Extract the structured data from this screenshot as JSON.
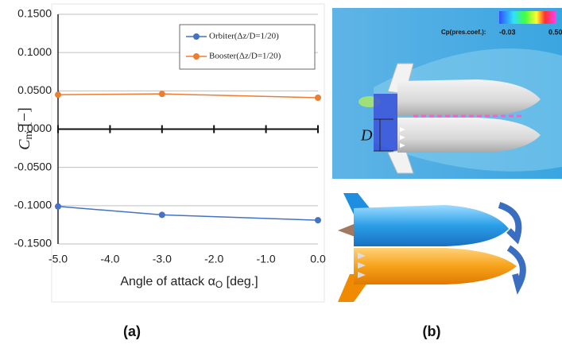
{
  "chart_data": {
    "type": "line",
    "x": [
      -5,
      -3,
      0
    ],
    "series": [
      {
        "name": "Orbiter(Δz/D=1/20)",
        "color": "#4472c4",
        "values": [
          -0.101,
          -0.112,
          -0.119
        ]
      },
      {
        "name": "Booster(Δz/D=1/20)",
        "color": "#ed7d31",
        "values": [
          0.045,
          0.046,
          0.041
        ]
      }
    ],
    "xlim": [
      -5,
      0
    ],
    "xticks": [
      {
        "value": -5,
        "label": "-5.0"
      },
      {
        "value": -4,
        "label": "-4.0"
      },
      {
        "value": -3,
        "label": "-3.0"
      },
      {
        "value": -2,
        "label": "-2.0"
      },
      {
        "value": -1,
        "label": "-1.0"
      },
      {
        "value": 0,
        "label": "0.0"
      }
    ],
    "ylim": [
      -0.15,
      0.15
    ],
    "yticks": [
      {
        "value": 0.15,
        "label": "0.1500"
      },
      {
        "value": 0.1,
        "label": "0.1000"
      },
      {
        "value": 0.05,
        "label": "0.0500"
      },
      {
        "value": 0,
        "label": "0.0000"
      },
      {
        "value": -0.05,
        "label": "-0.0500"
      },
      {
        "value": -0.1,
        "label": "-0.1000"
      },
      {
        "value": -0.15,
        "label": "-0.1500"
      }
    ],
    "ylabel": {
      "symbol": "C",
      "subscript": "m",
      "unit": " [−]"
    },
    "xlabel": {
      "text": "Angle of attack α",
      "subscript": "O",
      "unit": " [deg.]"
    },
    "grid": true,
    "legend": "upper right"
  },
  "panel_labels": [
    "(a)",
    "(b)"
  ],
  "figure_b": {
    "colorbar_label": "Cp(pres.coef.):",
    "colorbar_min": "-0.03",
    "colorbar_max": "0.50",
    "dimension_label": "D"
  }
}
